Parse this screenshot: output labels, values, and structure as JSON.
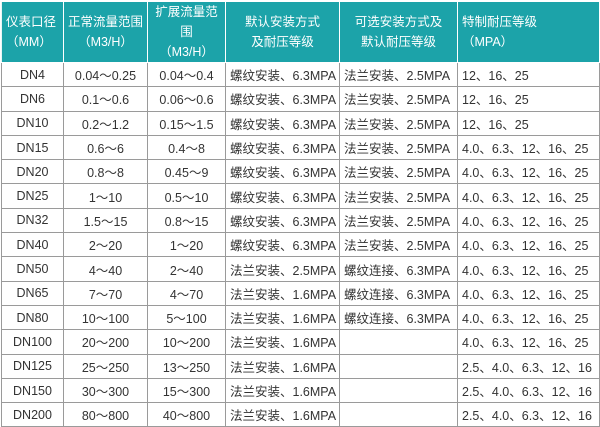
{
  "headers": [
    {
      "line1": "仪表口径",
      "line2": "（MM）"
    },
    {
      "line1": "正常流量范围",
      "line2": "（M3/H）"
    },
    {
      "line1": "扩展流量范围",
      "line2": "（M3/H）"
    },
    {
      "line1": "默认安装方式",
      "line2": "及耐压等级"
    },
    {
      "line1": "可选安装方式及",
      "line2": "默认耐压等级"
    },
    {
      "line1": "特制耐压等级",
      "line2": "（MPA）"
    }
  ],
  "rows": [
    [
      "DN4",
      "0.04～0.25",
      "0.04～0.4",
      "螺纹安装、6.3MPA",
      "法兰安装、2.5MPA",
      "12、16、25"
    ],
    [
      "DN6",
      "0.1～0.6",
      "0.06～0.6",
      "螺纹安装、6.3MPA",
      "法兰安装、2.5MPA",
      "12、16、25"
    ],
    [
      "DN10",
      "0.2～1.2",
      "0.15～1.5",
      "螺纹安装、6.3MPA",
      "法兰安装、2.5MPA",
      "12、16、25"
    ],
    [
      "DN15",
      "0.6～6",
      "0.4～8",
      "螺纹安装、6.3MPA",
      "法兰安装、2.5MPA",
      "4.0、6.3、12、16、25"
    ],
    [
      "DN20",
      "0.8～8",
      "0.45～9",
      "螺纹安装、6.3MPA",
      "法兰安装、2.5MPA",
      "4.0、6.3、12、16、25"
    ],
    [
      "DN25",
      "1～10",
      "0.5～10",
      "螺纹安装、6.3MPA",
      "法兰安装、2.5MPA",
      "4.0、6.3、12、16、25"
    ],
    [
      "DN32",
      "1.5～15",
      "0.8～15",
      "螺纹安装、6.3MPA",
      "法兰安装、2.5MPA",
      "4.0、6.3、12、16、25"
    ],
    [
      "DN40",
      "2～20",
      "1～20",
      "螺纹安装、6.3MPA",
      "法兰安装、2.5MPA",
      "4.0、6.3、12、16、25"
    ],
    [
      "DN50",
      "4～40",
      "2～40",
      "法兰安装、2.5MPA",
      "螺纹连接、6.3MPA",
      "4.0、6.3、12、16、25"
    ],
    [
      "DN65",
      "7～70",
      "4～70",
      "法兰安装、1.6MPA",
      "螺纹连接、6.3MPA",
      "4.0、6.3、12、16、25"
    ],
    [
      "DN80",
      "10～100",
      "5～100",
      "法兰安装、1.6MPA",
      "螺纹连接、6.3MPA",
      "4.0、6.3、12、16、25"
    ],
    [
      "DN100",
      "20～200",
      "10～200",
      "法兰安装、1.6MPA",
      "",
      "4.0、6.3、12、16、25"
    ],
    [
      "DN125",
      "25～250",
      "13～250",
      "法兰安装、1.6MPA",
      "",
      "2.5、4.0、6.3、12、16"
    ],
    [
      "DN150",
      "30～300",
      "15～300",
      "法兰安装、1.6MPA",
      "",
      "2.5、4.0、6.3、12、16"
    ],
    [
      "DN200",
      "80～800",
      "40～800",
      "法兰安装、1.6MPA",
      "",
      "2.5、4.0、6.3、12、16"
    ]
  ],
  "colors": {
    "header_bg": "#1ca3a9",
    "header_text": "#ffffff",
    "border": "#9a9a9a"
  }
}
